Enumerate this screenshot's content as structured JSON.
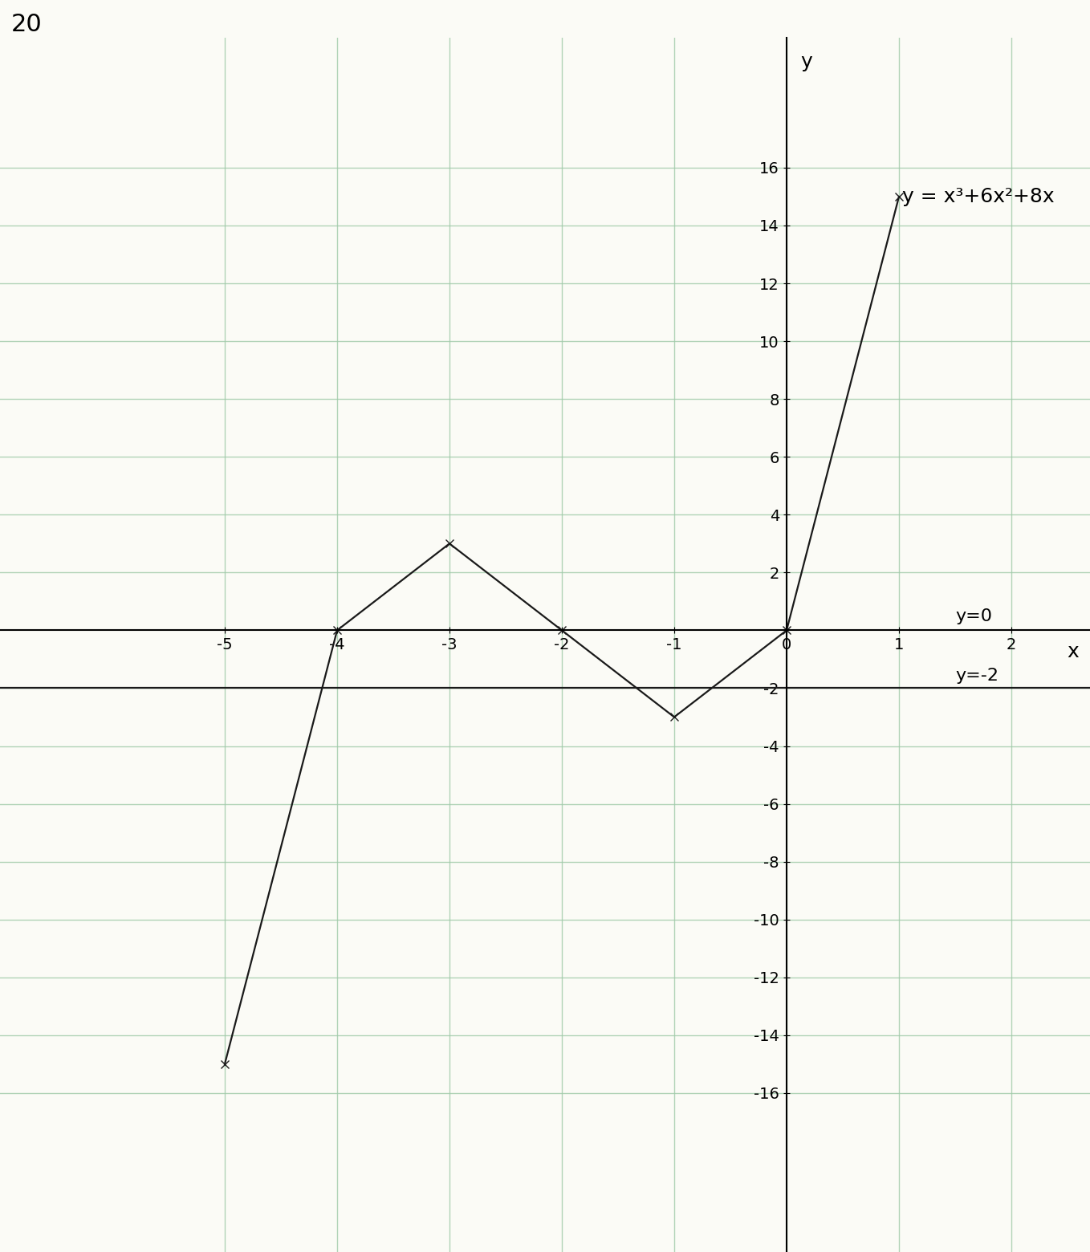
{
  "chart_data": {
    "type": "line",
    "title": "20",
    "x_label": "x",
    "y_label": "y",
    "series": [
      {
        "name": "y = x³+6x²+8x",
        "color": "#1a1a1a",
        "marker": "x",
        "line_style": "solid",
        "x": [
          -5,
          -4,
          -3,
          -2,
          -1,
          0,
          1
        ],
        "values": [
          -15,
          0,
          3,
          0,
          -3,
          0,
          15
        ]
      },
      {
        "name": "y=-2",
        "color": "#1a1a1a",
        "line_style": "solid",
        "x": [
          -7,
          2.7
        ],
        "values": [
          -2,
          -2
        ]
      }
    ],
    "annotations": [
      "y=0"
    ],
    "xlim": [
      -7,
      2.7
    ],
    "ylim": [
      -21.5,
      20.5
    ],
    "xticks": [
      -5,
      -4,
      -3,
      -2,
      -1,
      0,
      1,
      2
    ],
    "yticks": [
      -16,
      -14,
      -12,
      -10,
      -8,
      -6,
      -4,
      -2,
      2,
      4,
      6,
      8,
      10,
      12,
      14,
      16
    ],
    "grid": true
  }
}
